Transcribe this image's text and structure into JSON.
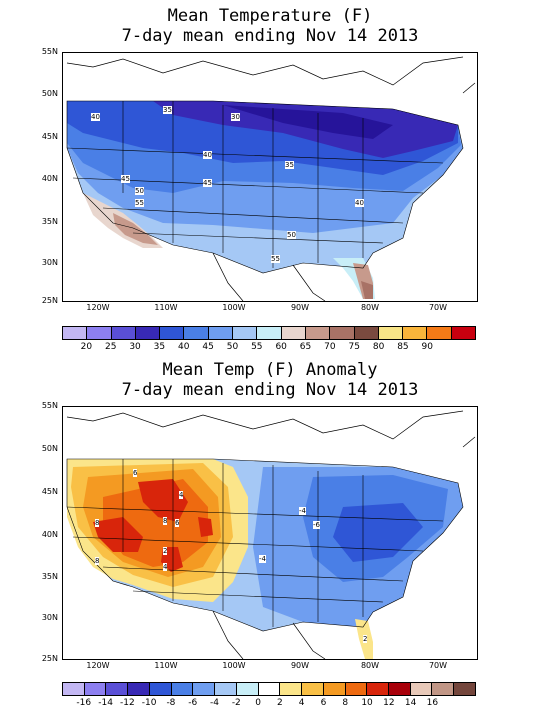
{
  "map1": {
    "title_line1": "Mean Temperature (F)",
    "title_line2": "7-day mean ending Nov 14 2013",
    "lat_labels": [
      "55N",
      "50N",
      "45N",
      "40N",
      "35N",
      "30N",
      "25N"
    ],
    "lon_labels": [
      "120W",
      "110W",
      "100W",
      "90W",
      "80W",
      "70W"
    ],
    "contour_labels": [
      "35",
      "30",
      "40",
      "40",
      "35",
      "45",
      "45",
      "50",
      "55",
      "40",
      "50",
      "55"
    ],
    "legend_values": [
      "20",
      "25",
      "30",
      "35",
      "40",
      "45",
      "50",
      "55",
      "60",
      "65",
      "70",
      "75",
      "80",
      "85",
      "90"
    ],
    "legend_colors": [
      "#c3b7f3",
      "#8d7ff0",
      "#5a4fd6",
      "#3829b5",
      "#2f56d6",
      "#4a7fe6",
      "#6f9ef0",
      "#a5c8f5",
      "#c8eef7",
      "#e8d6ce",
      "#c79a8c",
      "#a87266",
      "#7a4a3f",
      "#f7e487",
      "#f9b53b",
      "#f47a17",
      "#c8000f"
    ]
  },
  "map2": {
    "title_line1": "Mean Temp (F) Anomaly",
    "title_line2": "7-day mean ending Nov 14 2013",
    "lat_labels": [
      "55N",
      "50N",
      "45N",
      "40N",
      "35N",
      "30N",
      "25N"
    ],
    "lon_labels": [
      "120W",
      "110W",
      "100W",
      "90W",
      "80W",
      "70W"
    ],
    "contour_labels": [
      "6",
      "4",
      "8",
      "8",
      "6",
      "2",
      "8",
      "4",
      "-4",
      "-6",
      "-4",
      "2"
    ],
    "legend_values": [
      "-16",
      "-14",
      "-12",
      "-10",
      "-8",
      "-6",
      "-4",
      "-2",
      "0",
      "2",
      "4",
      "6",
      "8",
      "10",
      "12",
      "14",
      "16"
    ],
    "legend_colors": [
      "#c3b7f3",
      "#8d7ff0",
      "#5a4fd6",
      "#3829b5",
      "#2f56d6",
      "#4a7fe6",
      "#6f9ef0",
      "#a5c8f5",
      "#c8eef7",
      "#ffffff",
      "#fbe58a",
      "#f9c046",
      "#f49a22",
      "#ee6a10",
      "#d8250b",
      "#a8000a",
      "#e8c9b9",
      "#c19686",
      "#74463c"
    ]
  }
}
